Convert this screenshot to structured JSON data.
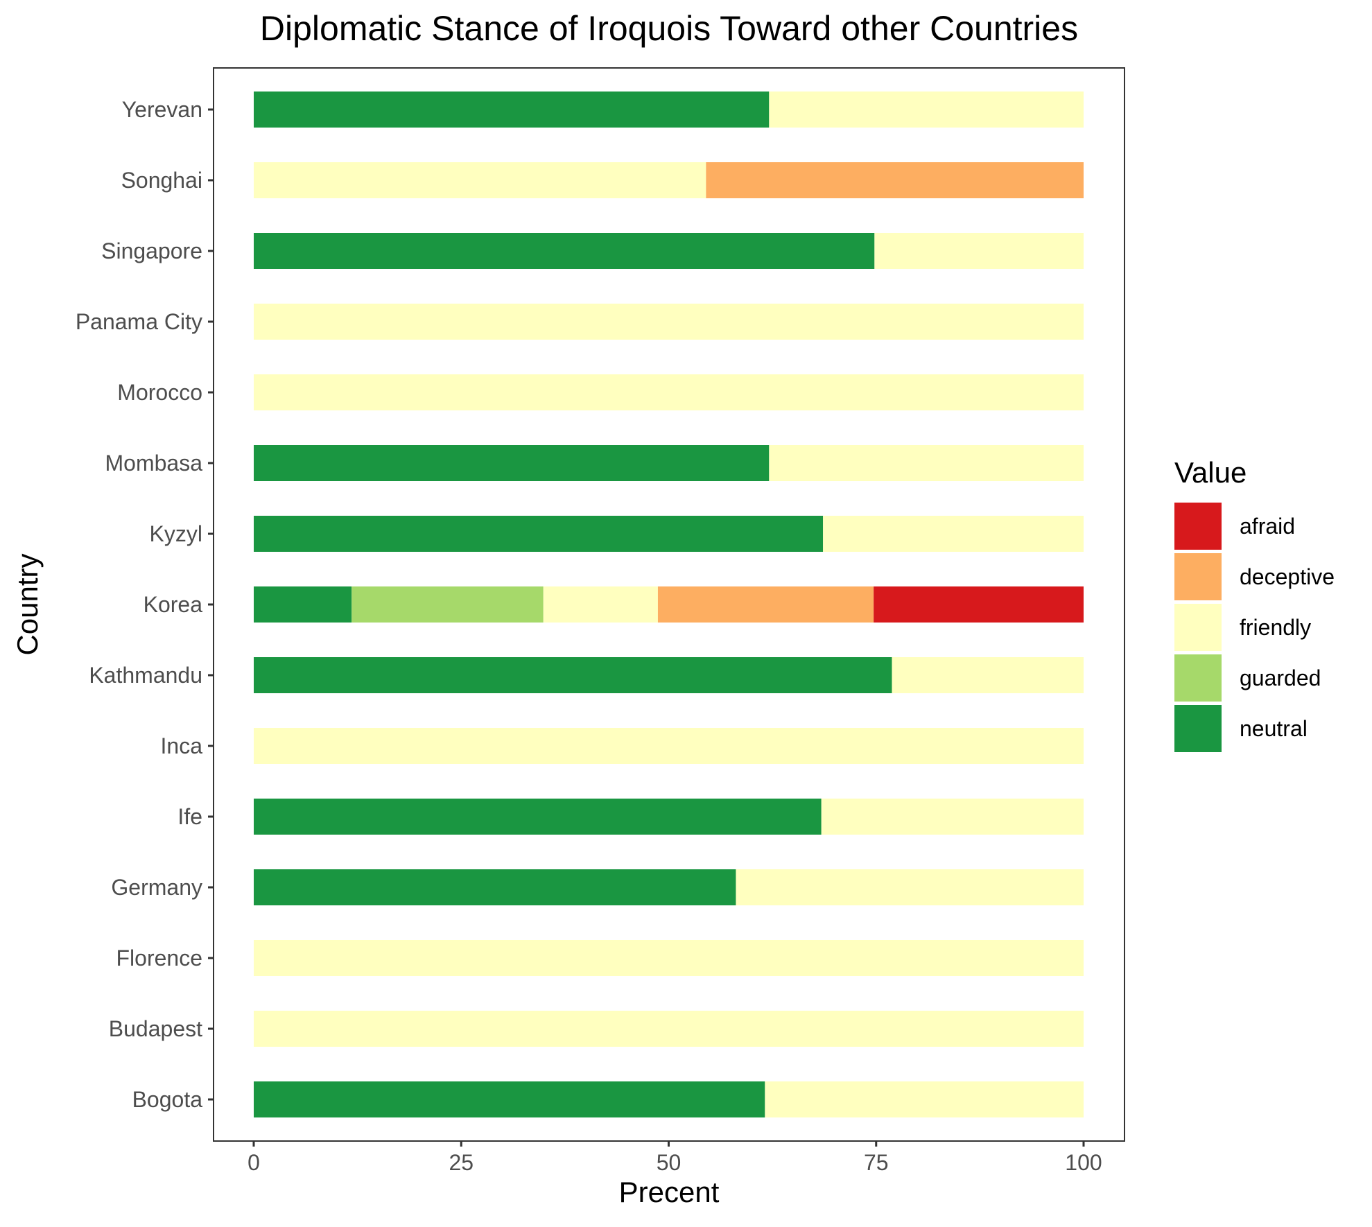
{
  "chart_data": {
    "type": "bar",
    "orientation": "horizontal",
    "stacked": true,
    "title": "Diplomatic Stance of Iroquois Toward other Countries",
    "xlabel": "Precent",
    "ylabel": "Country",
    "xlim": [
      0,
      100
    ],
    "x_ticks": [
      0,
      25,
      50,
      75,
      100
    ],
    "grid": false,
    "legend": {
      "title": "Value",
      "position": "right",
      "entries": [
        {
          "name": "afraid",
          "color": "#d7191c"
        },
        {
          "name": "deceptive",
          "color": "#fdae61"
        },
        {
          "name": "friendly",
          "color": "#ffffbf"
        },
        {
          "name": "guarded",
          "color": "#a6d96a"
        },
        {
          "name": "neutral",
          "color": "#1a9641"
        }
      ]
    },
    "stack_order": [
      "neutral",
      "guarded",
      "friendly",
      "deceptive",
      "afraid"
    ],
    "categories": [
      "Yerevan",
      "Songhai",
      "Singapore",
      "Panama City",
      "Morocco",
      "Mombasa",
      "Kyzyl",
      "Korea",
      "Kathmandu",
      "Inca",
      "Ife",
      "Germany",
      "Florence",
      "Budapest",
      "Bogota"
    ],
    "series": [
      {
        "name": "afraid",
        "values": [
          0,
          0,
          0,
          0,
          0,
          0,
          0,
          25.3,
          0,
          0,
          0,
          0,
          0,
          0,
          0
        ]
      },
      {
        "name": "deceptive",
        "values": [
          0,
          45.5,
          0,
          0,
          0,
          0,
          0,
          26.0,
          0,
          0,
          0,
          0,
          0,
          0,
          0
        ]
      },
      {
        "name": "friendly",
        "values": [
          37.9,
          54.5,
          25.2,
          100,
          100,
          37.9,
          31.4,
          13.8,
          23.1,
          100,
          31.6,
          41.9,
          100,
          100,
          38.4
        ]
      },
      {
        "name": "guarded",
        "values": [
          0,
          0,
          0,
          0,
          0,
          0,
          0,
          23.1,
          0,
          0,
          0,
          0,
          0,
          0,
          0
        ]
      },
      {
        "name": "neutral",
        "values": [
          62.1,
          0,
          74.8,
          0,
          0,
          62.1,
          68.6,
          11.8,
          76.9,
          0,
          68.4,
          58.1,
          0,
          0,
          61.6
        ]
      }
    ]
  }
}
